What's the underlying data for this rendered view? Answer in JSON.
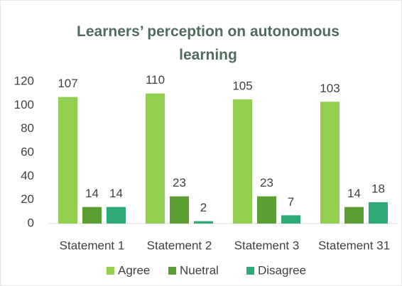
{
  "chart_data": {
    "type": "bar",
    "title": "Learners’ perception on autonomous learning",
    "categories": [
      "Statement 1",
      "Statement 2",
      "Statement 3",
      "Statement 31"
    ],
    "series": [
      {
        "name": "Agree",
        "color": "#92d050",
        "values": [
          107,
          110,
          105,
          103
        ]
      },
      {
        "name": "Nuetral",
        "color": "#5c9e34",
        "values": [
          14,
          23,
          23,
          14
        ]
      },
      {
        "name": "Disagree",
        "color": "#2eaa78",
        "values": [
          14,
          2,
          7,
          18
        ]
      }
    ],
    "ylim": [
      0,
      120
    ],
    "yticks": [
      0,
      20,
      40,
      60,
      80,
      100,
      120
    ],
    "grid": false,
    "legend": "bottom"
  }
}
